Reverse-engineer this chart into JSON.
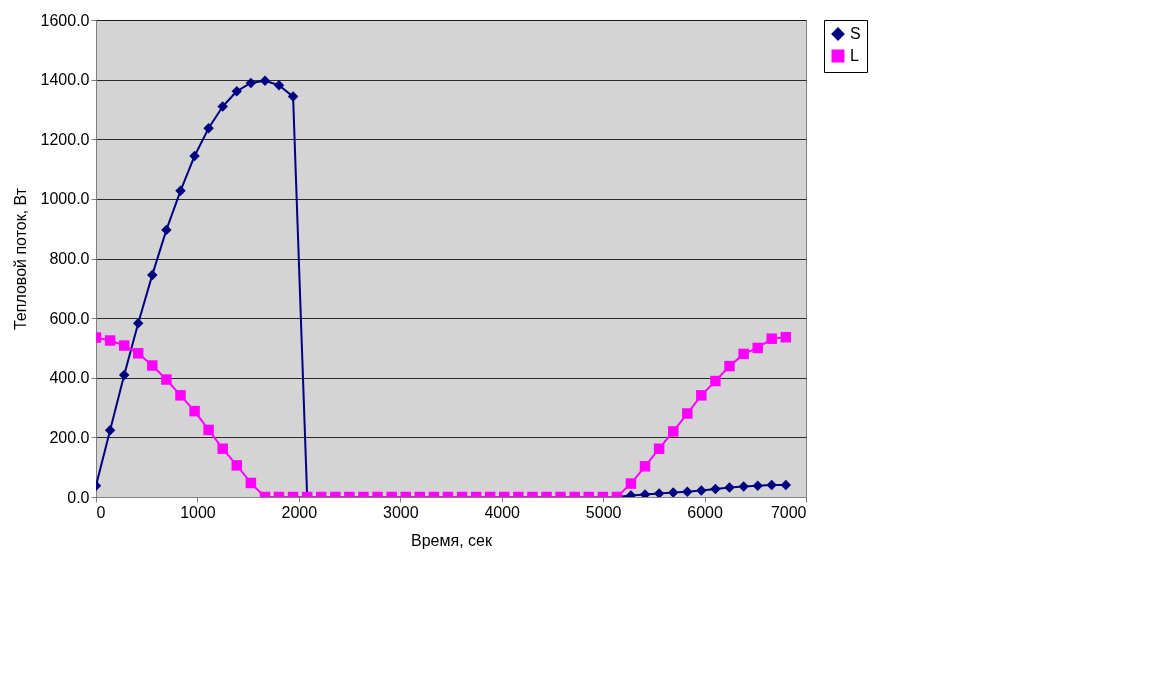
{
  "chart_data": {
    "type": "line",
    "xlabel": "Время, сек",
    "ylabel": "Тепловой поток, Вт",
    "x": [
      0,
      139,
      278,
      416,
      555,
      694,
      833,
      972,
      1110,
      1249,
      1388,
      1527,
      1666,
      1804,
      1943,
      2082,
      2221,
      2360,
      2498,
      2637,
      2776,
      2915,
      3054,
      3192,
      3331,
      3470,
      3609,
      3748,
      3886,
      4025,
      4164,
      4303,
      4442,
      4580,
      4719,
      4858,
      4997,
      5136,
      5274,
      5413,
      5552,
      5691,
      5830,
      5968,
      6107,
      6246,
      6385,
      6524,
      6662,
      6801
    ],
    "series": [
      {
        "name": "S",
        "color": "#000080",
        "marker": "diamond",
        "values": [
          38,
          224,
          409,
          583,
          745,
          896,
          1027,
          1144,
          1237,
          1310,
          1361,
          1389,
          1396,
          1381,
          1343,
          0,
          0,
          0,
          0,
          0,
          0,
          0,
          0,
          0,
          0,
          0,
          0,
          0,
          0,
          0,
          0,
          0,
          0,
          0,
          0,
          0,
          0,
          0,
          5,
          8,
          12,
          15,
          18,
          22,
          27,
          32,
          35,
          38,
          40,
          40
        ]
      },
      {
        "name": "L",
        "color": "#ff00ff",
        "marker": "square",
        "values": [
          535,
          525,
          508,
          482,
          441,
          394,
          341,
          288,
          225,
          162,
          106,
          47,
          0,
          0,
          0,
          0,
          0,
          0,
          0,
          0,
          0,
          0,
          0,
          0,
          0,
          0,
          0,
          0,
          0,
          0,
          0,
          0,
          0,
          0,
          0,
          0,
          0,
          0,
          45,
          103,
          162,
          220,
          280,
          341,
          389,
          439,
          480,
          500,
          531,
          536
        ]
      }
    ],
    "xlim": [
      0,
      7000
    ],
    "xticks": [
      0,
      1000,
      2000,
      3000,
      4000,
      5000,
      6000,
      7000
    ],
    "ylim": [
      0,
      1600
    ],
    "yticks": [
      {
        "value": 0,
        "label": "0.0"
      },
      {
        "value": 200,
        "label": "200.0"
      },
      {
        "value": 400,
        "label": "400.0"
      },
      {
        "value": 600,
        "label": "600.0"
      },
      {
        "value": 800,
        "label": "800.0"
      },
      {
        "value": 1000,
        "label": "1000.0"
      },
      {
        "value": 1200,
        "label": "1200.0"
      },
      {
        "value": 1400,
        "label": "1400.0"
      },
      {
        "value": 1600,
        "label": "1600.0"
      }
    ],
    "grid": "y",
    "legend": "right",
    "line_style": "solid"
  }
}
